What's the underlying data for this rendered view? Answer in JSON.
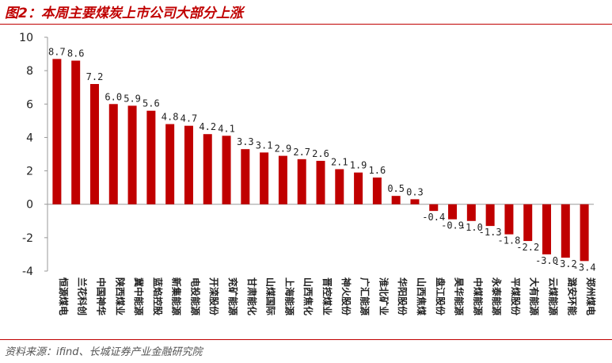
{
  "header": {
    "title": "图2：本周主要煤炭上市公司大部分上涨"
  },
  "footer": {
    "source": "资料来源：ifind、长城证券产业金融研究院"
  },
  "colors": {
    "bar": "#c00000",
    "accent": "#c00000",
    "axis": "#999999",
    "text": "#222222"
  },
  "chart_data": {
    "type": "bar",
    "title": "",
    "xlabel": "",
    "ylabel": "",
    "ylim": [
      -4,
      10
    ],
    "yticks": [
      -4,
      -2,
      0,
      2,
      4,
      6,
      8,
      10
    ],
    "grid": false,
    "legend": "none",
    "categories": [
      "恒源煤电",
      "兰花科创",
      "中国神华",
      "陕西煤业",
      "冀中能源",
      "蓝焰控股",
      "新集能源",
      "电投能源",
      "开滦股份",
      "兖矿能源",
      "甘肃能化",
      "山煤国际",
      "上海能源",
      "山西焦化",
      "晋控煤业",
      "神火股份",
      "广汇能源",
      "淮北矿业",
      "华阳股份",
      "山西焦煤",
      "盘江股份",
      "昊华能源",
      "中煤能源",
      "永泰能源",
      "平煤股份",
      "大有能源",
      "云煤能源",
      "潞安环能",
      "郑州煤电"
    ],
    "values": [
      8.7,
      8.6,
      7.2,
      6.0,
      5.9,
      5.6,
      4.8,
      4.7,
      4.2,
      4.1,
      3.3,
      3.1,
      2.9,
      2.7,
      2.6,
      2.1,
      1.9,
      1.6,
      0.5,
      0.3,
      -0.4,
      -0.9,
      -1.0,
      -1.3,
      -1.8,
      -2.2,
      -3.0,
      -3.2,
      -3.4
    ],
    "value_labels": [
      "8.7",
      "8.6",
      "7.2",
      "6.0",
      "5.9",
      "5.6",
      "4.8",
      "4.7",
      "4.2",
      "4.1",
      "3.3",
      "3.1",
      "2.9",
      "2.7",
      "2.6",
      "2.1",
      "1.9",
      "1.6",
      "0.5",
      "0.3",
      "-0.4",
      "-0.9",
      "-1.0",
      "-1.3",
      "-1.8",
      "-2.2",
      "-3.0",
      "-3.2",
      "-3.4"
    ]
  }
}
